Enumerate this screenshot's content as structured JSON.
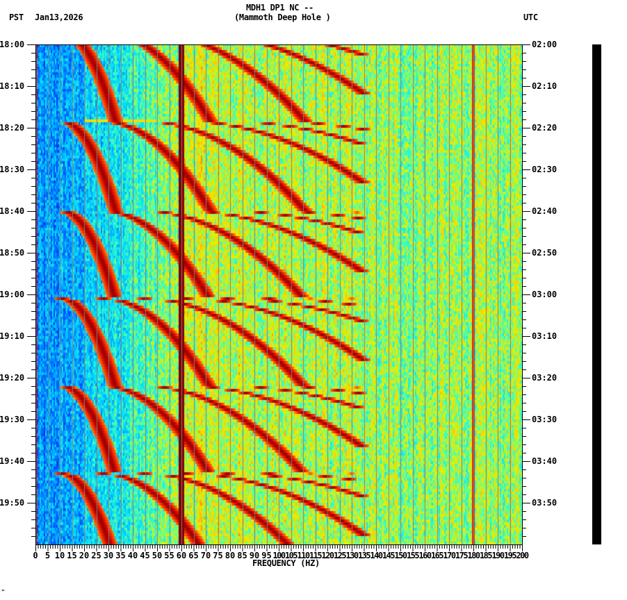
{
  "header": {
    "station_line": "MDH1 DP1 NC --",
    "location_line": "(Mammoth Deep Hole )",
    "left_timezone": "PST",
    "date": "Jan13,2026",
    "right_timezone": "UTC"
  },
  "footer": {
    "xlabel": "FREQUENCY (HZ)",
    "corner_mark": "\""
  },
  "colors": {
    "low": "#0050ff",
    "mid_low": "#00e5ff",
    "mid": "#f0f000",
    "high": "#ff4000",
    "peak": "#800000",
    "gridline": "#808080",
    "status_bar": "#000000"
  },
  "chart_data": {
    "type": "heatmap",
    "title": "MDH1 DP1 NC -- (Mammoth Deep Hole )",
    "subtitle": "Jan13,2026",
    "xlabel": "FREQUENCY (HZ)",
    "ylabel_left": "PST",
    "ylabel_right": "UTC",
    "xlim": [
      0,
      200
    ],
    "x_ticks": [
      0,
      5,
      10,
      15,
      20,
      25,
      30,
      35,
      40,
      45,
      50,
      55,
      60,
      65,
      70,
      75,
      80,
      85,
      90,
      95,
      100,
      105,
      110,
      115,
      120,
      125,
      130,
      135,
      140,
      145,
      150,
      155,
      160,
      165,
      170,
      175,
      180,
      185,
      190,
      195,
      200
    ],
    "y_ticks_left": [
      "18:00",
      "18:10",
      "18:20",
      "18:30",
      "18:40",
      "18:50",
      "19:00",
      "19:10",
      "19:20",
      "19:30",
      "19:40",
      "19:50"
    ],
    "y_ticks_right": [
      "02:00",
      "02:10",
      "02:20",
      "02:30",
      "02:40",
      "02:50",
      "03:00",
      "03:10",
      "03:20",
      "03:30",
      "03:40",
      "03:50"
    ],
    "time_range_minutes": 120,
    "grid": "vertical gridlines every 5 Hz",
    "features": {
      "constant_line_hz": 60,
      "weak_line_hz": [
        23,
        180
      ],
      "sweep_cycle_start_minutes": [
        -3,
        18.5,
        40,
        61,
        82,
        103
      ],
      "sweep_period_minutes": 21.5,
      "harmonic_count_visible": 9,
      "low_freq_energy": "low (blue) 0-20 Hz",
      "high_freq_energy": "moderate (yellow/green) 130-200 Hz"
    }
  }
}
